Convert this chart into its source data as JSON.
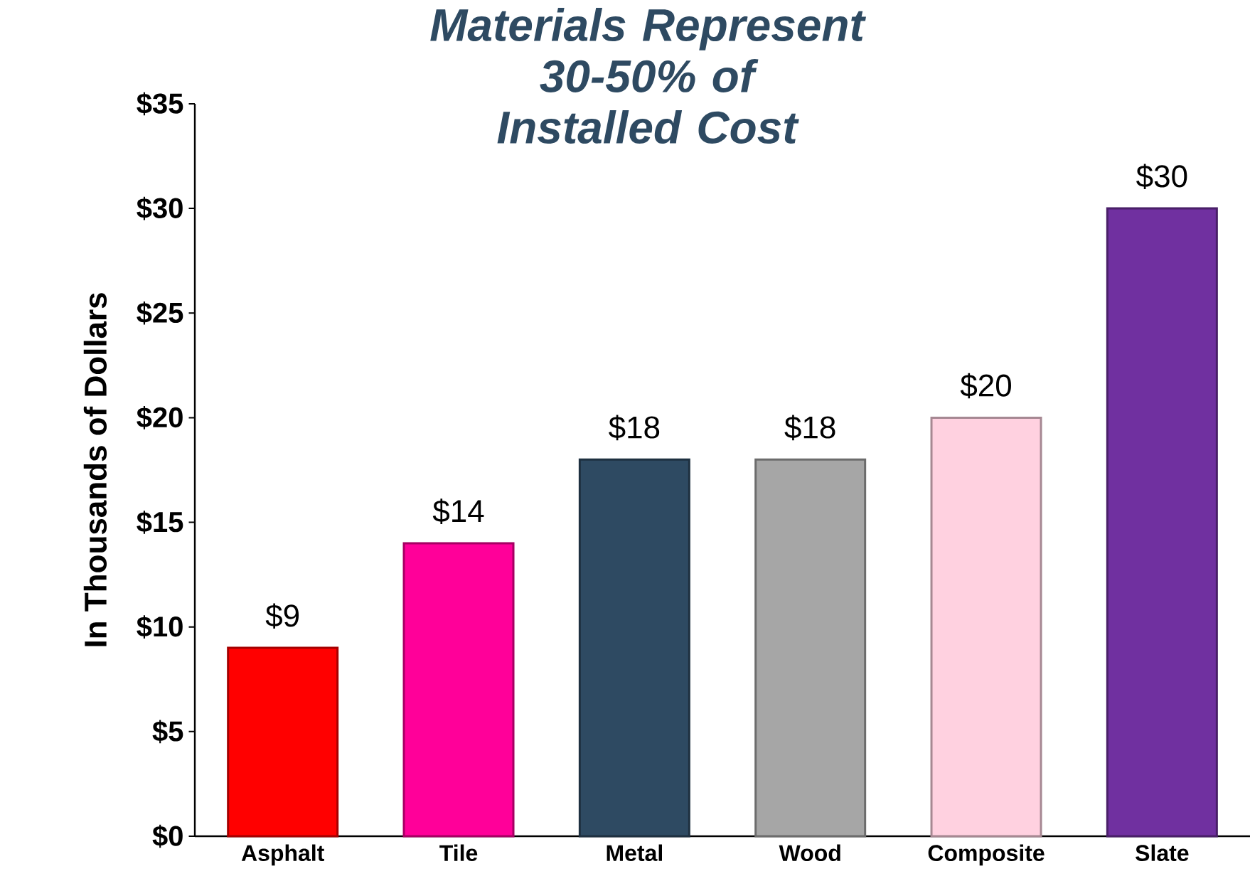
{
  "chart_data": {
    "type": "bar",
    "title": "Materials Represent 30-50% of Installed Cost",
    "ylabel": "In Thousands of Dollars",
    "categories": [
      "Asphalt",
      "Tile",
      "Metal",
      "Wood",
      "Composite",
      "Slate"
    ],
    "values": [
      9,
      14,
      18,
      18,
      20,
      30
    ],
    "value_labels": [
      "$9",
      "$14",
      "$18",
      "$18",
      "$20",
      "$30"
    ],
    "colors": [
      "#ff0000",
      "#ff0099",
      "#2e4a62",
      "#a6a6a6",
      "#ffd1e0",
      "#7030a0"
    ],
    "ylim": [
      0,
      35
    ],
    "yticks": [
      {
        "value": 0,
        "label": "$0"
      },
      {
        "value": 5,
        "label": "$5"
      },
      {
        "value": 10,
        "label": "$10"
      },
      {
        "value": 15,
        "label": "$15"
      },
      {
        "value": 20,
        "label": "$20"
      },
      {
        "value": 25,
        "label": "$25"
      },
      {
        "value": 30,
        "label": "$30"
      },
      {
        "value": 35,
        "label": "$35"
      }
    ],
    "grid": false
  }
}
